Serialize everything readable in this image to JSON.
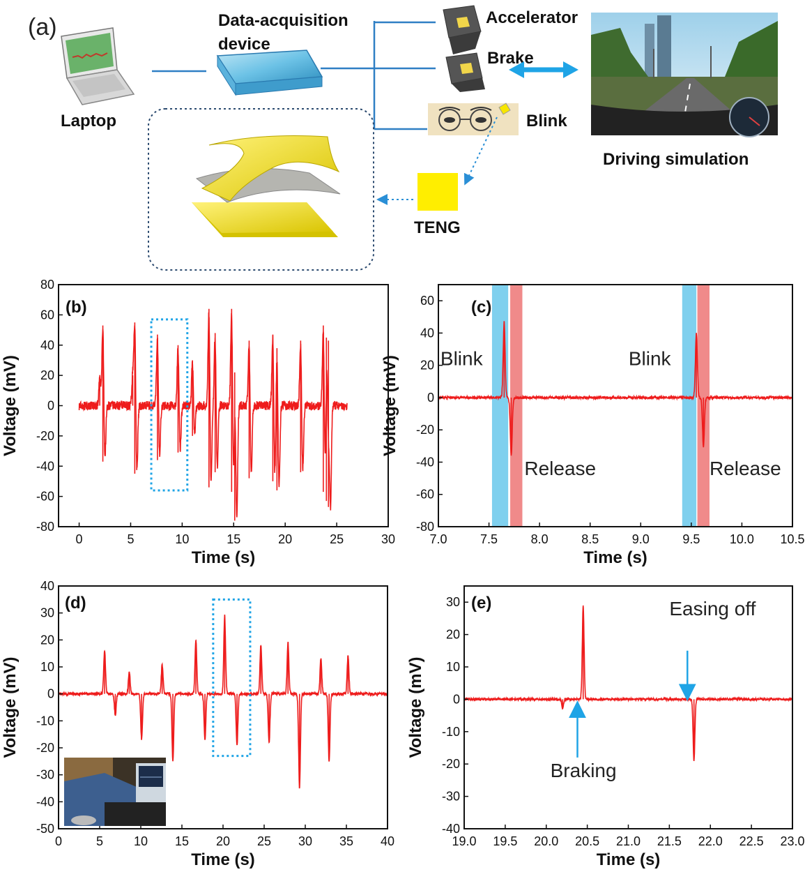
{
  "panel_a": {
    "label": "(a)",
    "laptop_label": "Laptop",
    "daq_label_line1": "Data-acquisition",
    "daq_label_line2": "device",
    "accelerator_label": "Accelerator",
    "brake_label": "Brake",
    "blink_label": "Blink",
    "teng_label": "TENG",
    "sim_label": "Driving simulation"
  },
  "chart_data": [
    {
      "id": "b",
      "panel_label": "(b)",
      "type": "line",
      "xlabel": "Time (s)",
      "ylabel": "Voltage (mV)",
      "xlim": [
        -2,
        30
      ],
      "ylim": [
        -80,
        80
      ],
      "xticks": [
        0,
        5,
        10,
        15,
        20,
        25,
        30
      ],
      "yticks": [
        -80,
        -60,
        -40,
        -20,
        0,
        20,
        40,
        60,
        80
      ],
      "x_range": [
        0,
        26
      ],
      "noise": 3,
      "events": [
        {
          "t": 2.0,
          "pos": 18,
          "neg": 0
        },
        {
          "t": 2.3,
          "pos": 53,
          "neg": -37
        },
        {
          "t": 5.2,
          "pos": 20,
          "neg": 0
        },
        {
          "t": 5.4,
          "pos": 55,
          "neg": -45
        },
        {
          "t": 7.6,
          "pos": 47,
          "neg": -36
        },
        {
          "t": 9.6,
          "pos": 40,
          "neg": -31
        },
        {
          "t": 11.0,
          "pos": 30,
          "neg": -20
        },
        {
          "t": 12.6,
          "pos": 64,
          "neg": -54
        },
        {
          "t": 13.2,
          "pos": 48,
          "neg": -44
        },
        {
          "t": 14.8,
          "pos": 64,
          "neg": -57
        },
        {
          "t": 15.1,
          "pos": 22,
          "neg": -76
        },
        {
          "t": 16.5,
          "pos": 43,
          "neg": -48
        },
        {
          "t": 18.8,
          "pos": 47,
          "neg": -50
        },
        {
          "t": 19.2,
          "pos": 38,
          "neg": -56
        },
        {
          "t": 21.5,
          "pos": 43,
          "neg": -44
        },
        {
          "t": 23.7,
          "pos": 53,
          "neg": -57
        },
        {
          "t": 24.0,
          "pos": 45,
          "neg": -63
        },
        {
          "t": 24.2,
          "pos": 43,
          "neg": -67
        }
      ],
      "box": {
        "x": [
          7.0,
          10.5
        ],
        "y": [
          -56,
          57
        ]
      }
    },
    {
      "id": "c",
      "panel_label": "(c)",
      "type": "line",
      "xlabel": "Time (s)",
      "ylabel": "Voltage (mV)",
      "xlim": [
        7.0,
        10.5
      ],
      "ylim": [
        -80,
        70
      ],
      "xticks": [
        7.0,
        7.5,
        8.0,
        8.5,
        9.0,
        9.5,
        10.0,
        10.5
      ],
      "yticks": [
        -80,
        -60,
        -40,
        -20,
        0,
        20,
        40,
        60
      ],
      "x_range": [
        7.0,
        10.5
      ],
      "noise": 0.8,
      "events": [
        {
          "t": 7.65,
          "pos": 47,
          "neg": 0
        },
        {
          "t": 7.72,
          "pos": 0,
          "neg": -36
        },
        {
          "t": 9.55,
          "pos": 40,
          "neg": 0
        },
        {
          "t": 9.62,
          "pos": 0,
          "neg": -30
        }
      ],
      "bands": [
        {
          "x": [
            7.53,
            7.69
          ],
          "color": "#7fd0ee"
        },
        {
          "x": [
            7.71,
            7.83
          ],
          "color": "#f08a8a"
        },
        {
          "x": [
            9.41,
            9.55
          ],
          "color": "#7fd0ee"
        },
        {
          "x": [
            9.56,
            9.68
          ],
          "color": "#f08a8a"
        }
      ],
      "annotations": [
        {
          "text": "Blink",
          "x": 7.02,
          "y": 20
        },
        {
          "text": "Release",
          "x": 7.85,
          "y": -48
        },
        {
          "text": "Blink",
          "x": 8.88,
          "y": 20
        },
        {
          "text": "Release",
          "x": 9.68,
          "y": -48
        }
      ]
    },
    {
      "id": "d",
      "panel_label": "(d)",
      "type": "line",
      "xlabel": "Time (s)",
      "ylabel": "Voltage (mV)",
      "xlim": [
        0,
        40
      ],
      "ylim": [
        -50,
        40
      ],
      "xticks": [
        0,
        5,
        10,
        15,
        20,
        25,
        30,
        35,
        40
      ],
      "yticks": [
        -50,
        -40,
        -30,
        -20,
        -10,
        0,
        10,
        20,
        30,
        40
      ],
      "x_range": [
        0,
        40
      ],
      "noise": 0.5,
      "events": [
        {
          "t": 5.6,
          "pos": 16,
          "neg": 0
        },
        {
          "t": 6.9,
          "pos": 0,
          "neg": -8
        },
        {
          "t": 8.6,
          "pos": 8,
          "neg": 0
        },
        {
          "t": 10.1,
          "pos": 0,
          "neg": -17
        },
        {
          "t": 12.6,
          "pos": 11,
          "neg": 0
        },
        {
          "t": 13.9,
          "pos": 0,
          "neg": -25
        },
        {
          "t": 16.7,
          "pos": 20,
          "neg": 0
        },
        {
          "t": 17.8,
          "pos": 0,
          "neg": -17
        },
        {
          "t": 20.2,
          "pos": 29,
          "neg": 0
        },
        {
          "t": 21.7,
          "pos": 0,
          "neg": -19
        },
        {
          "t": 24.6,
          "pos": 18,
          "neg": 0
        },
        {
          "t": 25.6,
          "pos": 0,
          "neg": -18
        },
        {
          "t": 27.9,
          "pos": 19,
          "neg": 0
        },
        {
          "t": 29.3,
          "pos": 0,
          "neg": -35
        },
        {
          "t": 31.9,
          "pos": 13,
          "neg": 0
        },
        {
          "t": 32.9,
          "pos": 0,
          "neg": -25
        },
        {
          "t": 35.2,
          "pos": 14,
          "neg": 0
        }
      ],
      "box": {
        "x": [
          18.8,
          23.3
        ],
        "y": [
          -23,
          35
        ]
      }
    },
    {
      "id": "e",
      "panel_label": "(e)",
      "type": "line",
      "xlabel": "Time (s)",
      "ylabel": "Voltage (mV)",
      "xlim": [
        19.0,
        23.0
      ],
      "ylim": [
        -40,
        35
      ],
      "xticks": [
        19.0,
        19.5,
        20.0,
        20.5,
        21.0,
        21.5,
        22.0,
        22.5,
        23.0
      ],
      "yticks": [
        -40,
        -30,
        -20,
        -10,
        0,
        10,
        20,
        30
      ],
      "x_range": [
        19.0,
        23.0
      ],
      "noise": 0.35,
      "events": [
        {
          "t": 20.2,
          "pos": 0,
          "neg": -3
        },
        {
          "t": 20.45,
          "pos": 29,
          "neg": 0
        },
        {
          "t": 21.8,
          "pos": 0,
          "neg": -19
        }
      ],
      "annotations": [
        {
          "text": "Easing off",
          "x": 21.5,
          "y": 26
        },
        {
          "text": "Braking",
          "x": 20.05,
          "y": -24
        }
      ],
      "arrows": [
        {
          "x": 21.72,
          "y_from": 15,
          "y_to": 1
        },
        {
          "x": 20.38,
          "y_from": -18,
          "y_to": -2
        }
      ]
    }
  ]
}
